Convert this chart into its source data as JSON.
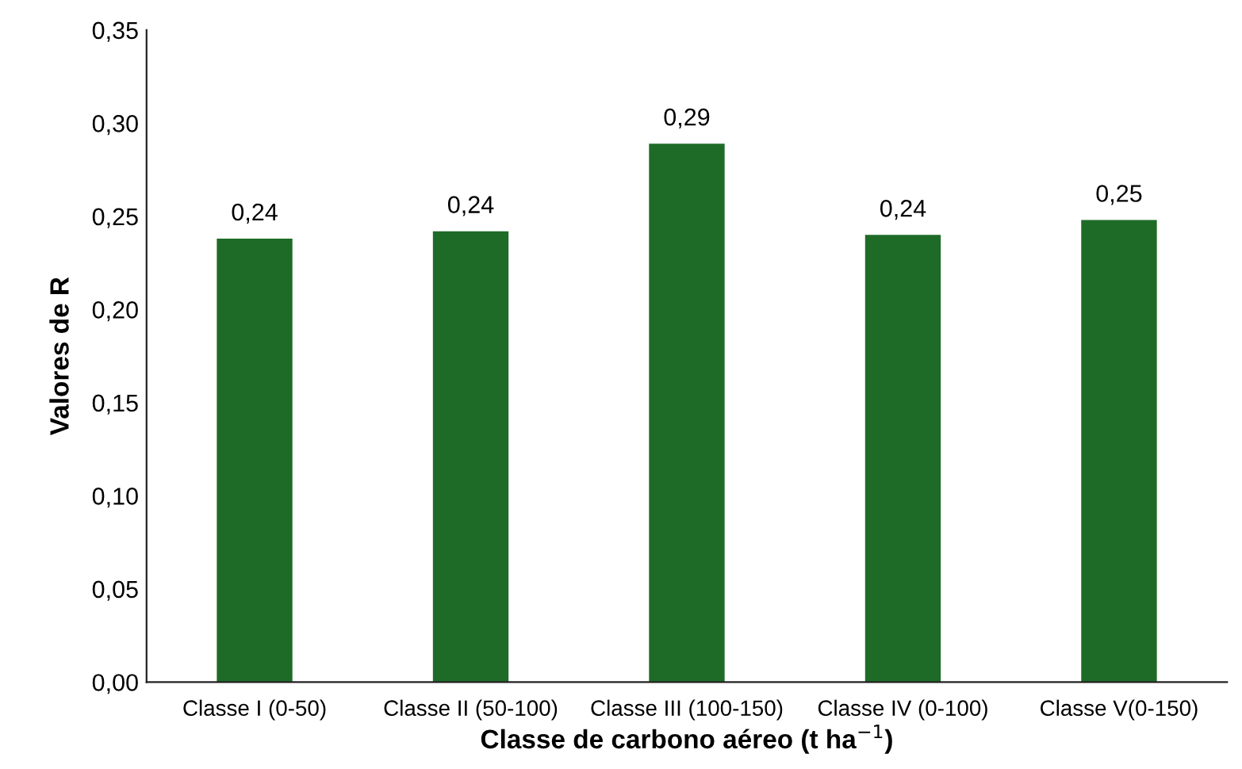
{
  "chart_data": {
    "type": "bar",
    "categories": [
      "Classe I (0-50)",
      "Classe II (50-100)",
      "Classe III (100-150)",
      "Classe IV (0-100)",
      "Classe V(0-150)"
    ],
    "series": [
      {
        "color": "#1e6b28",
        "values": [
          0.238,
          0.242,
          0.289,
          0.24,
          0.248
        ],
        "value_labels": [
          "0,24",
          "0,24",
          "0,29",
          "0,24",
          "0,25"
        ]
      }
    ],
    "xlabel": "Classe de carbono aéreo (t ha$^{−1}$)",
    "ylabel": "Valores de R",
    "ylim": [
      0,
      0.35
    ],
    "yticks": [
      {
        "value": 0,
        "label": "0,00"
      },
      {
        "value": 0.05,
        "label": "0,05"
      },
      {
        "value": 0.1,
        "label": "0,10"
      },
      {
        "value": 0.15,
        "label": "0,15"
      },
      {
        "value": 0.2,
        "label": "0,20"
      },
      {
        "value": 0.25,
        "label": "0,25"
      },
      {
        "value": 0.3,
        "label": "0,30"
      },
      {
        "value": 0.35,
        "label": "0,35"
      }
    ],
    "grid": false,
    "legend": false
  }
}
